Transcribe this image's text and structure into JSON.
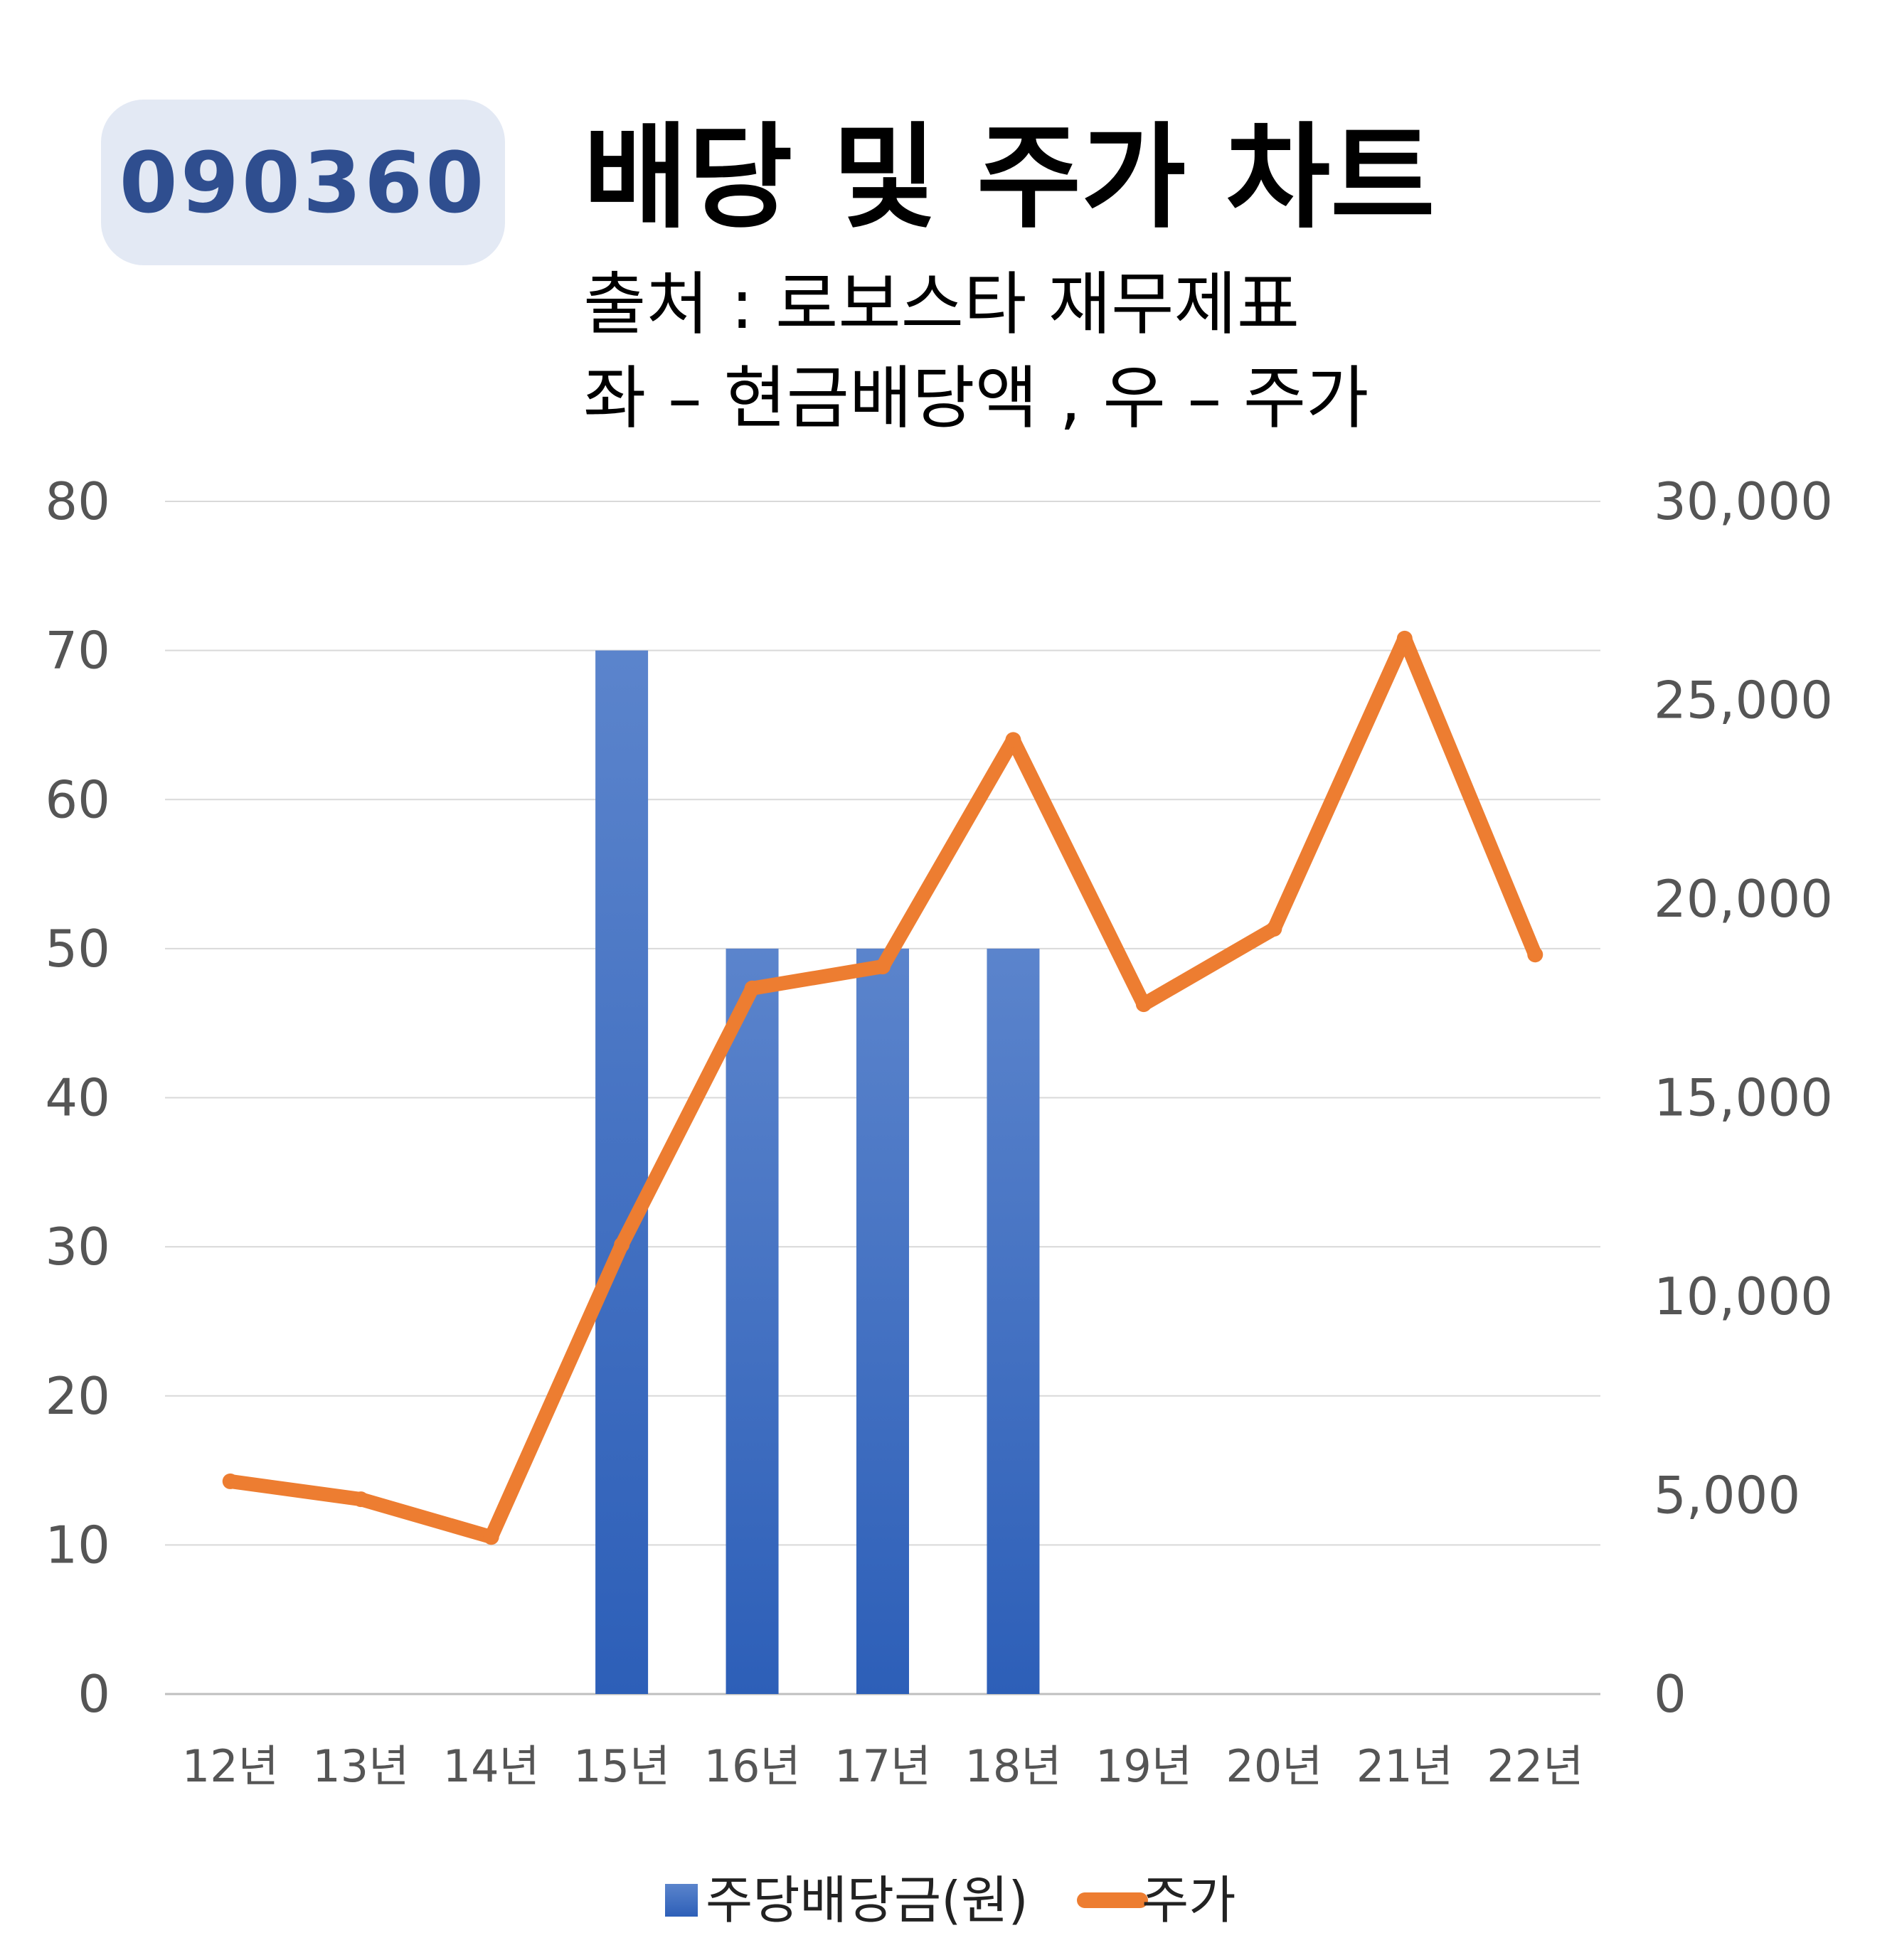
{
  "header": {
    "ticker": "090360",
    "title": "배당 및 주가 차트",
    "subtitle_source": "출처 : 로보스타 재무제표",
    "subtitle_axes": "좌 – 현금배당액 , 우 – 주가"
  },
  "chart_data": {
    "type": "bar+line",
    "categories": [
      "12년",
      "13년",
      "14년",
      "15년",
      "16년",
      "17년",
      "18년",
      "19년",
      "20년",
      "21년",
      "22년"
    ],
    "series": [
      {
        "name": "주당배당금(원)",
        "type": "bar",
        "axis": "left",
        "values": [
          0,
          0,
          0,
          70,
          50,
          50,
          50,
          0,
          0,
          0,
          0
        ]
      },
      {
        "name": "주가",
        "type": "line",
        "axis": "right",
        "values": [
          5350,
          4900,
          3950,
          11300,
          17750,
          18300,
          24000,
          17350,
          19250,
          26550,
          18600
        ]
      }
    ],
    "left_axis": {
      "min": 0,
      "max": 80,
      "step": 10,
      "tick_labels": [
        "0",
        "10",
        "20",
        "30",
        "40",
        "50",
        "60",
        "70",
        "80"
      ]
    },
    "right_axis": {
      "min": 0,
      "max": 30000,
      "step": 5000,
      "tick_labels": [
        "0",
        "5,000",
        "10,000",
        "15,000",
        "20,000",
        "25,000",
        "30,000"
      ]
    },
    "grid": true,
    "legend": "bottom",
    "colors": {
      "bar_top": "#5b84cc",
      "bar_bottom": "#2d5fb8",
      "line": "#ed7d31",
      "grid": "#d9d9d9"
    }
  }
}
